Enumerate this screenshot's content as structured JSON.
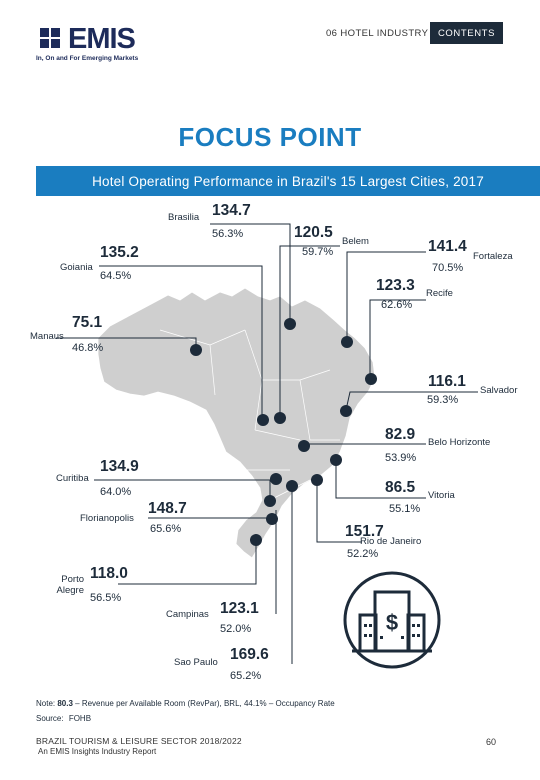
{
  "header": {
    "logo_text": "EMIS",
    "logo_tagline": "In, On and For Emerging Markets",
    "section": "06 HOTEL INDUSTRY",
    "contents_label": "CONTENTS"
  },
  "title": "FOCUS POINT",
  "banner": "Hotel Operating Performance in Brazil's 15 Largest Cities, 2017",
  "cities": [
    {
      "name": "Brasilia",
      "revpar": "134.7",
      "occupancy": "56.3%"
    },
    {
      "name": "Belem",
      "revpar": "120.5",
      "occupancy": "59.7%"
    },
    {
      "name": "Fortaleza",
      "revpar": "141.4",
      "occupancy": "70.5%"
    },
    {
      "name": "Goiania",
      "revpar": "135.2",
      "occupancy": "64.5%"
    },
    {
      "name": "Recife",
      "revpar": "123.3",
      "occupancy": "62.6%"
    },
    {
      "name": "Manaus",
      "revpar": "75.1",
      "occupancy": "46.8%"
    },
    {
      "name": "Salvador",
      "revpar": "116.1",
      "occupancy": "59.3%"
    },
    {
      "name": "Belo Horizonte",
      "revpar": "82.9",
      "occupancy": "53.9%"
    },
    {
      "name": "Curitiba",
      "revpar": "134.9",
      "occupancy": "64.0%"
    },
    {
      "name": "Vitoria",
      "revpar": "86.5",
      "occupancy": "55.1%"
    },
    {
      "name": "Florianopolis",
      "revpar": "148.7",
      "occupancy": "65.6%"
    },
    {
      "name": "Rio de Janeiro",
      "revpar": "151.7",
      "occupancy": "52.2%"
    },
    {
      "name": "Porto Alegre",
      "revpar": "118.0",
      "occupancy": "56.5%"
    },
    {
      "name": "Campinas",
      "revpar": "123.1",
      "occupancy": "52.0%"
    },
    {
      "name": "Sao Paulo",
      "revpar": "169.6",
      "occupancy": "65.2%"
    }
  ],
  "note": {
    "prefix": "Note: ",
    "example_value": "80.3",
    "text": " – Revenue per Available Room (RevPar), BRL, 44.1% – Occupancy Rate"
  },
  "source": {
    "label": "Source:",
    "value": "FOHB"
  },
  "footer": {
    "line1": "BRAZIL TOURISM & LEISURE SECTOR 2018/2022",
    "line2": "An EMIS Insights Industry Report",
    "page": "60"
  },
  "colors": {
    "accent": "#1a7dc0",
    "dark": "#1d2b3a",
    "map_fill": "#cfcfcf"
  },
  "icon": "hotel-building-icon"
}
